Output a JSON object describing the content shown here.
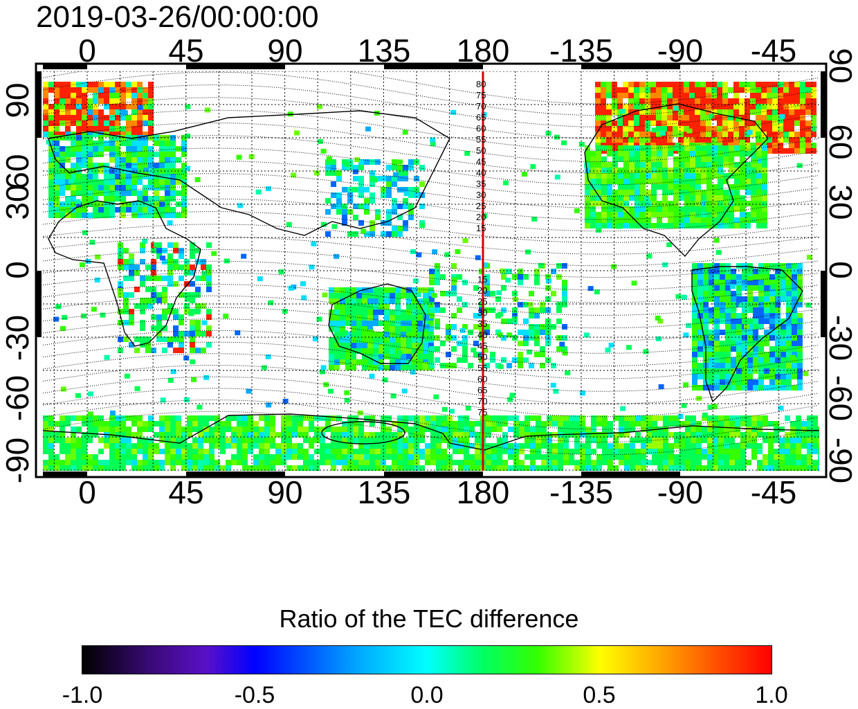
{
  "timestamp": "2019-03-26/00:00:00",
  "map": {
    "lon_ticks": [
      "0",
      "45",
      "90",
      "135",
      "180",
      "-135",
      "-90",
      "-45"
    ],
    "lat_ticks": [
      "90",
      "60",
      "30",
      "0",
      "-30",
      "-60",
      "-90"
    ],
    "magnetic_lat_labels_north": [
      "80",
      "75",
      "70",
      "65",
      "60",
      "55",
      "50",
      "45",
      "40",
      "35",
      "30",
      "25",
      "20",
      "15"
    ],
    "magnetic_lat_labels_south": [
      "15",
      "20",
      "25",
      "30",
      "35",
      "40",
      "45",
      "50",
      "55",
      "60",
      "65",
      "70",
      "75"
    ],
    "reference_line_color": "#d40000"
  },
  "colorbar": {
    "title": "Ratio of the TEC difference",
    "ticks": [
      "-1.0",
      "-0.5",
      "0.0",
      "0.5",
      "1.0"
    ]
  }
}
